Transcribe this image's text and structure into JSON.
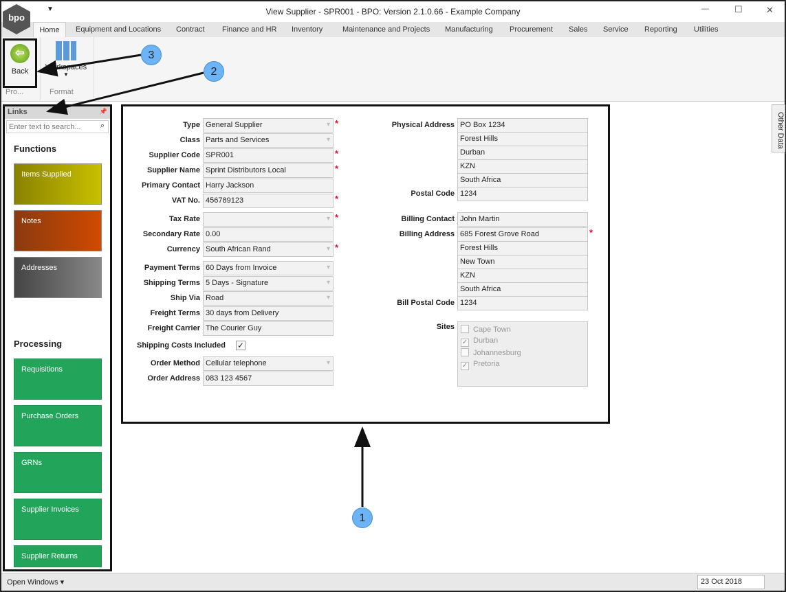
{
  "window": {
    "title": "View Supplier - SPR001 - BPO: Version 2.1.0.66 - Example Company",
    "logo": "bpo",
    "min": "—",
    "max": "☐",
    "close": "✕"
  },
  "tabs": [
    "Home",
    "Equipment and Locations",
    "Contract",
    "Finance and HR",
    "Inventory",
    "Maintenance and Projects",
    "Manufacturing",
    "Procurement",
    "Sales",
    "Service",
    "Reporting",
    "Utilities"
  ],
  "ribbon": {
    "back": "Back",
    "workspaces": "Workspaces",
    "group1": "Pro...",
    "group2": "Format"
  },
  "links": {
    "header": "Links",
    "search_placeholder": "Enter text to search...",
    "functions": "Functions",
    "processing": "Processing",
    "function_items": [
      "Items Supplied",
      "Notes",
      "Addresses"
    ],
    "processing_items": [
      "Requisitions",
      "Purchase Orders",
      "GRNs",
      "Supplier Invoices",
      "Supplier Returns"
    ]
  },
  "form": {
    "left": [
      {
        "label": "Type",
        "value": "General Supplier",
        "dropdown": true,
        "required": true
      },
      {
        "label": "Class",
        "value": "Parts and Services",
        "dropdown": true,
        "required": false
      },
      {
        "label": "Supplier Code",
        "value": "SPR001",
        "dropdown": false,
        "required": true
      },
      {
        "label": "Supplier Name",
        "value": "Sprint Distributors Local",
        "dropdown": false,
        "required": true
      },
      {
        "label": "Primary Contact",
        "value": "Harry Jackson",
        "dropdown": false,
        "required": false
      },
      {
        "label": "VAT No.",
        "value": "456789123",
        "dropdown": false,
        "required": true
      },
      {
        "label": "Tax Rate",
        "value": "",
        "dropdown": true,
        "required": true
      },
      {
        "label": "Secondary Rate",
        "value": "0.00",
        "dropdown": false,
        "required": false
      },
      {
        "label": "Currency",
        "value": "South African Rand",
        "dropdown": true,
        "required": true
      },
      {
        "label": "Payment Terms",
        "value": "60 Days from Invoice",
        "dropdown": true,
        "required": false
      },
      {
        "label": "Shipping Terms",
        "value": "5 Days - Signature",
        "dropdown": true,
        "required": false
      },
      {
        "label": "Ship Via",
        "value": "Road",
        "dropdown": true,
        "required": false
      },
      {
        "label": "Freight Terms",
        "value": "30 days from Delivery",
        "dropdown": false,
        "required": false
      },
      {
        "label": "Freight Carrier",
        "value": "The Courier Guy",
        "dropdown": false,
        "required": false
      },
      {
        "label": "Order Method",
        "value": "Cellular telephone",
        "dropdown": true,
        "required": false
      },
      {
        "label": "Order Address",
        "value": "083 123 4567",
        "dropdown": false,
        "required": false
      }
    ],
    "shipping_costs_label": "Shipping Costs Included",
    "shipping_costs_checked": true,
    "physical_address_label": "Physical Address",
    "physical_address": [
      "PO Box 1234",
      "Forest Hills",
      "Durban",
      "KZN",
      "South Africa"
    ],
    "postal_code_label": "Postal Code",
    "postal_code": "1234",
    "billing_contact_label": "Billing Contact",
    "billing_contact": "John Martin",
    "billing_address_label": "Billing Address",
    "billing_address": [
      "685 Forest Grove Road",
      "Forest Hills",
      "New Town",
      "KZN",
      "South Africa"
    ],
    "bill_postal_code_label": "Bill Postal Code",
    "bill_postal_code": "1234",
    "sites_label": "Sites",
    "sites": [
      {
        "name": "Cape Town",
        "checked": false
      },
      {
        "name": "Durban",
        "checked": true
      },
      {
        "name": "Johannesburg",
        "checked": false
      },
      {
        "name": "Pretoria",
        "checked": true
      }
    ]
  },
  "other_data": "Other Data",
  "status": {
    "open_windows": "Open Windows ▾",
    "date": "23 Oct 2018"
  },
  "annotations": [
    "1",
    "2",
    "3"
  ]
}
